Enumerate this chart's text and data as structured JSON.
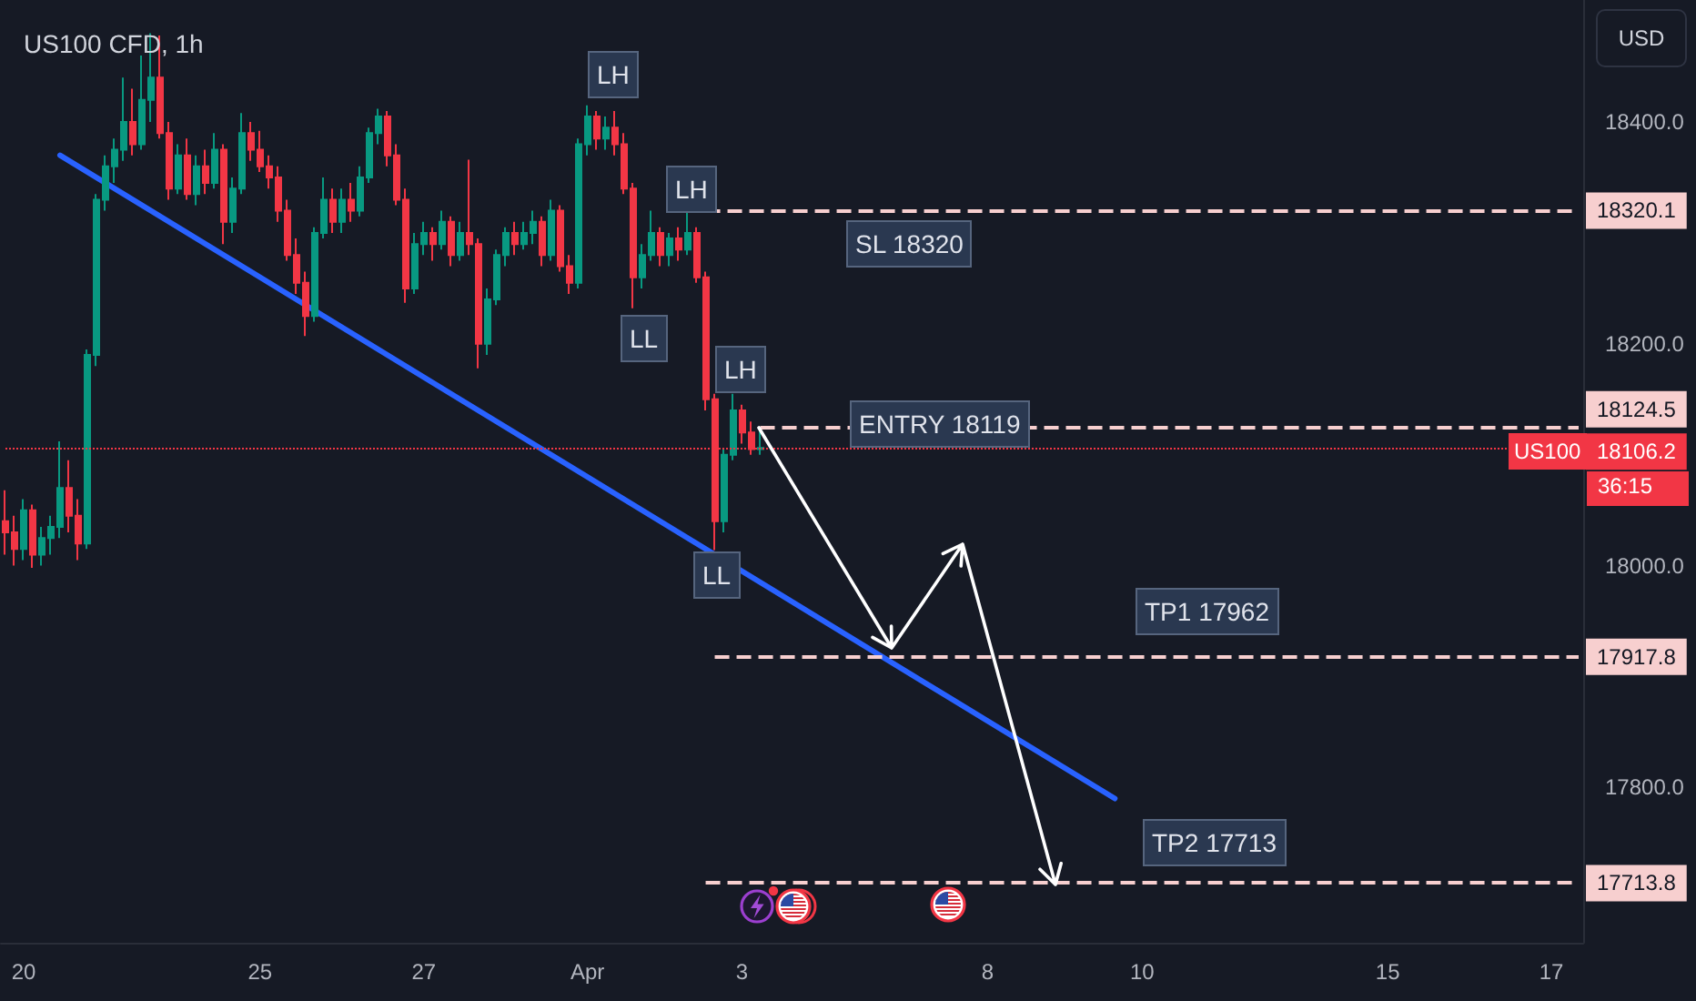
{
  "chart_data": {
    "type": "candlestick",
    "title": "US100 CFD, 1h",
    "categories": [
      null,
      null,
      "20",
      null,
      null,
      null,
      null,
      null,
      null,
      null,
      null,
      null,
      null,
      null,
      null,
      null,
      null,
      null,
      null,
      null,
      null,
      null,
      null,
      null,
      null,
      null,
      null,
      null,
      "25",
      null,
      null,
      null,
      null,
      null,
      null,
      null,
      null,
      null,
      null,
      null,
      null,
      null,
      null,
      null,
      null,
      null,
      "27",
      null,
      null,
      null,
      null,
      null,
      null,
      null,
      null,
      null,
      null,
      null,
      null,
      null,
      null,
      null,
      null,
      null,
      "Apr",
      null,
      null,
      null,
      null,
      null,
      null,
      null,
      null,
      null,
      null,
      null,
      null,
      null,
      null,
      null,
      null,
      "3",
      null,
      null,
      null,
      null,
      null,
      null,
      null,
      null,
      null,
      null,
      null,
      null,
      null,
      null,
      null,
      null,
      null,
      null,
      null,
      null,
      null,
      null,
      null,
      null,
      null,
      null,
      "8",
      null,
      null,
      null,
      null,
      null,
      null,
      null,
      null,
      null,
      null,
      null,
      null,
      null,
      null,
      null,
      null,
      "10",
      null,
      null,
      null,
      null,
      null,
      null,
      null,
      null,
      null,
      null,
      null,
      null,
      null,
      null,
      null,
      null,
      null,
      null,
      null,
      null,
      null,
      null,
      null,
      null,
      null,
      null,
      "15",
      null,
      null,
      null,
      null,
      null,
      null,
      null,
      null,
      null,
      null,
      null,
      null,
      null,
      null,
      null,
      null,
      null,
      "17",
      null,
      null,
      null
    ],
    "ohlc": [
      [
        18040,
        18068,
        18010,
        18030
      ],
      [
        18030,
        18045,
        18000,
        18015
      ],
      [
        18015,
        18060,
        18005,
        18050
      ],
      [
        18050,
        18055,
        17998,
        18010
      ],
      [
        18010,
        18035,
        18000,
        18025
      ],
      [
        18025,
        18045,
        18010,
        18035
      ],
      [
        18035,
        18112,
        18025,
        18070
      ],
      [
        18070,
        18095,
        18030,
        18045
      ],
      [
        18045,
        18060,
        18005,
        18020
      ],
      [
        18020,
        18195,
        18015,
        18190
      ],
      [
        18190,
        18335,
        18180,
        18330
      ],
      [
        18330,
        18370,
        18320,
        18360
      ],
      [
        18360,
        18385,
        18345,
        18375
      ],
      [
        18375,
        18440,
        18365,
        18400
      ],
      [
        18400,
        18430,
        18370,
        18380
      ],
      [
        18380,
        18460,
        18375,
        18420
      ],
      [
        18420,
        18480,
        18400,
        18440
      ],
      [
        18440,
        18478,
        18385,
        18390
      ],
      [
        18390,
        18400,
        18330,
        18340
      ],
      [
        18340,
        18380,
        18335,
        18370
      ],
      [
        18370,
        18385,
        18330,
        18335
      ],
      [
        18335,
        18370,
        18325,
        18360
      ],
      [
        18360,
        18375,
        18335,
        18345
      ],
      [
        18345,
        18390,
        18340,
        18375
      ],
      [
        18375,
        18380,
        18290,
        18310
      ],
      [
        18310,
        18350,
        18300,
        18340
      ],
      [
        18340,
        18408,
        18335,
        18390
      ],
      [
        18390,
        18400,
        18365,
        18375
      ],
      [
        18375,
        18392,
        18355,
        18360
      ],
      [
        18360,
        18370,
        18340,
        18350
      ],
      [
        18350,
        18360,
        18310,
        18320
      ],
      [
        18320,
        18330,
        18275,
        18280
      ],
      [
        18280,
        18295,
        18245,
        18255
      ],
      [
        18255,
        18265,
        18207,
        18225
      ],
      [
        18225,
        18305,
        18220,
        18300
      ],
      [
        18300,
        18350,
        18295,
        18330
      ],
      [
        18330,
        18340,
        18300,
        18310
      ],
      [
        18310,
        18340,
        18300,
        18330
      ],
      [
        18330,
        18345,
        18310,
        18320
      ],
      [
        18320,
        18360,
        18315,
        18350
      ],
      [
        18350,
        18395,
        18345,
        18390
      ],
      [
        18390,
        18412,
        18380,
        18405
      ],
      [
        18405,
        18410,
        18360,
        18370
      ],
      [
        18370,
        18380,
        18325,
        18330
      ],
      [
        18330,
        18340,
        18237,
        18250
      ],
      [
        18250,
        18300,
        18245,
        18290
      ],
      [
        18290,
        18310,
        18280,
        18300
      ],
      [
        18300,
        18305,
        18275,
        18290
      ],
      [
        18290,
        18320,
        18285,
        18310
      ],
      [
        18310,
        18315,
        18270,
        18280
      ],
      [
        18280,
        18310,
        18275,
        18300
      ],
      [
        18300,
        18366,
        18280,
        18290
      ],
      [
        18290,
        18295,
        18178,
        18200
      ],
      [
        18200,
        18250,
        18190,
        18240
      ],
      [
        18240,
        18285,
        18235,
        18280
      ],
      [
        18280,
        18305,
        18270,
        18300
      ],
      [
        18300,
        18310,
        18280,
        18290
      ],
      [
        18290,
        18310,
        18285,
        18300
      ],
      [
        18300,
        18320,
        18290,
        18310
      ],
      [
        18310,
        18315,
        18270,
        18280
      ],
      [
        18280,
        18330,
        18275,
        18320
      ],
      [
        18320,
        18325,
        18265,
        18270
      ],
      [
        18270,
        18280,
        18245,
        18255
      ],
      [
        18255,
        18385,
        18250,
        18380
      ],
      [
        18380,
        18415,
        18370,
        18405
      ],
      [
        18405,
        18410,
        18375,
        18385
      ],
      [
        18385,
        18405,
        18375,
        18395
      ],
      [
        18395,
        18410,
        18370,
        18380
      ],
      [
        18380,
        18390,
        18335,
        18340
      ],
      [
        18340,
        18345,
        18232,
        18260
      ],
      [
        18260,
        18290,
        18250,
        18280
      ],
      [
        18280,
        18320,
        18275,
        18300
      ],
      [
        18300,
        18305,
        18270,
        18280
      ],
      [
        18280,
        18300,
        18270,
        18295
      ],
      [
        18295,
        18305,
        18275,
        18285
      ],
      [
        18285,
        18318,
        18280,
        18300
      ],
      [
        18300,
        18305,
        18255,
        18260
      ],
      [
        18260,
        18265,
        18140,
        18150
      ],
      [
        18150,
        18155,
        18014,
        18040
      ],
      [
        18040,
        18105,
        18030,
        18100
      ],
      [
        18100,
        18155,
        18095,
        18140
      ],
      [
        18140,
        18145,
        18110,
        18120
      ],
      [
        18120,
        18130,
        18100,
        18105
      ],
      [
        18105,
        18125,
        18100,
        18106.2
      ],
      null,
      null,
      null,
      null,
      null,
      null,
      null,
      null,
      null,
      null,
      null,
      null,
      null,
      null,
      null,
      null,
      null,
      null,
      null,
      null,
      null,
      null,
      null,
      null,
      null,
      null,
      null,
      null,
      null,
      null,
      null,
      null,
      null,
      null,
      null,
      null,
      null,
      null,
      null,
      null,
      null,
      null,
      null,
      null,
      null,
      null,
      null,
      null,
      null,
      null,
      null,
      null,
      null,
      null,
      null,
      null,
      null,
      null,
      null,
      null,
      null,
      null,
      null,
      null,
      null,
      null,
      null,
      null,
      null,
      null,
      null,
      null,
      null,
      null,
      null,
      null,
      null,
      null,
      null,
      null,
      null,
      null,
      null,
      null,
      null,
      null,
      null,
      null,
      null,
      null
    ],
    "series": [
      {
        "type": "line",
        "color": "#2962ff",
        "values": [
          null,
          null,
          null,
          null,
          null,
          null,
          18370,
          null,
          null,
          null,
          null,
          null,
          null,
          null,
          null,
          null,
          null,
          null,
          null,
          null,
          null,
          null,
          null,
          null,
          null,
          null,
          null,
          null,
          null,
          null,
          null,
          null,
          null,
          null,
          null,
          null,
          null,
          null,
          null,
          null,
          null,
          null,
          null,
          null,
          null,
          null,
          null,
          null,
          null,
          null,
          null,
          null,
          null,
          null,
          null,
          null,
          null,
          null,
          null,
          null,
          null,
          null,
          null,
          null,
          null,
          null,
          null,
          null,
          null,
          null,
          null,
          null,
          null,
          null,
          null,
          null,
          null,
          null,
          null,
          null,
          null,
          null,
          null,
          null,
          null,
          null,
          null,
          null,
          null,
          null,
          null,
          null,
          null,
          null,
          null,
          null,
          null,
          null,
          null,
          null,
          null,
          null,
          null,
          null,
          null,
          null,
          null,
          null,
          null,
          null,
          null,
          null,
          null,
          null,
          null,
          null,
          null,
          null,
          null,
          null,
          null,
          null,
          17790,
          null,
          null,
          null,
          null,
          null,
          null,
          null,
          null,
          null,
          null,
          null,
          null,
          null,
          null,
          null,
          null,
          null,
          null,
          null,
          null,
          null,
          null,
          null,
          null,
          null,
          null,
          null,
          null,
          null,
          null,
          null,
          null,
          null,
          null,
          null,
          null,
          null,
          null,
          null,
          null,
          null,
          null,
          null,
          null,
          null,
          null,
          null,
          null,
          null,
          null,
          null
        ]
      }
    ],
    "marker": "none",
    "ylim": [
      17660,
      18510
    ],
    "yticks": [
      {
        "value": 17800,
        "label": "17800.0"
      },
      {
        "value": 18000,
        "label": "18000.0"
      },
      {
        "value": 18200,
        "label": "18200.0"
      },
      {
        "value": 18400,
        "label": "18400.0"
      }
    ],
    "ref_lines": [
      {
        "axis": "y",
        "value": 18320.1,
        "label": "18320.1",
        "color": "#f7cfcf",
        "line_style": "dashed"
      },
      {
        "axis": "y",
        "value": 18124.5,
        "label": "18124.5",
        "color": "#f7cfcf",
        "line_style": "dashed"
      },
      {
        "axis": "y",
        "value": 17917.8,
        "label": "17917.8",
        "color": "#f7cfcf",
        "line_style": "dashed"
      },
      {
        "axis": "y",
        "value": 17713.8,
        "label": "17713.8",
        "color": "#f7cfcf",
        "line_style": "dashed"
      },
      {
        "axis": "y",
        "value": 18106.2,
        "label": "18106.2",
        "color": "#f23645",
        "line_style": "dotted"
      }
    ],
    "annotations": [
      "LH",
      "LH",
      "LL",
      "LH",
      "LL",
      "SL 18320",
      "ENTRY 18119",
      "TP1 17962",
      "TP2 17713",
      "US100",
      "36:15",
      "USD"
    ]
  }
}
